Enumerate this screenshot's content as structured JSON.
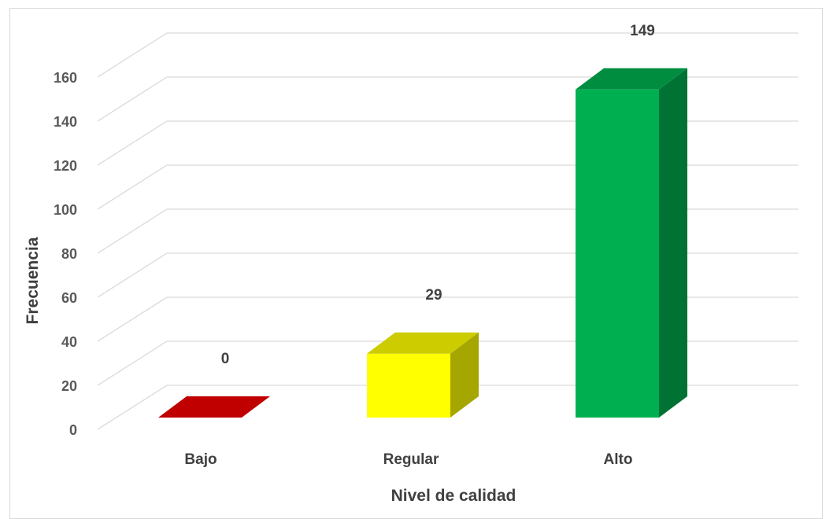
{
  "chart_data": {
    "type": "bar",
    "style": "3d-column",
    "categories": [
      "Bajo",
      "Regular",
      "Alto"
    ],
    "values": [
      0,
      29,
      149
    ],
    "data_labels": [
      "0",
      "29",
      "149"
    ],
    "colors": [
      "#c00000",
      "#ffff00",
      "#00b050"
    ],
    "xlabel": "Nivel de calidad",
    "ylabel": "Frecuencia",
    "ylim": [
      0,
      160
    ],
    "yticks": [
      "0",
      "20",
      "40",
      "60",
      "80",
      "100",
      "120",
      "140",
      "160"
    ],
    "grid": true,
    "legend": "none"
  }
}
